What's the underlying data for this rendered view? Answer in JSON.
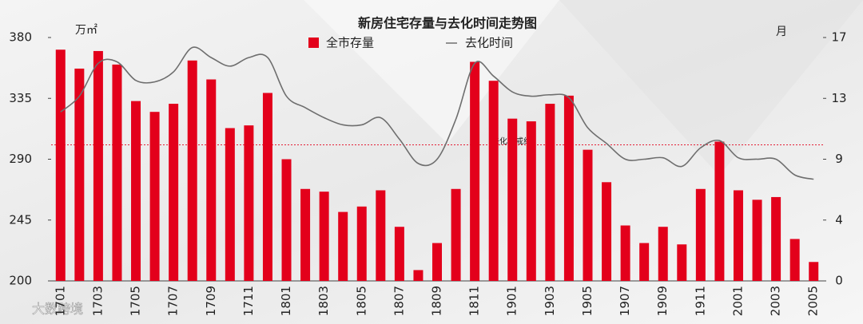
{
  "chart_data": {
    "type": "bar_line",
    "title": "新房住宅存量与去化时间走势图",
    "y_unit": "万㎡",
    "y2_unit": "月",
    "categories": [
      "1701",
      null,
      "1703",
      null,
      "1705",
      null,
      "1707",
      null,
      "1709",
      null,
      "1711",
      null,
      "1801",
      null,
      "1803",
      null,
      "1805",
      null,
      "1807",
      null,
      "1809",
      null,
      "1811",
      null,
      "1901",
      null,
      "1903",
      null,
      "1905",
      null,
      "1907",
      null,
      "1909",
      null,
      "1911",
      null,
      "2001",
      null,
      "2003",
      null,
      "2005"
    ],
    "series": [
      {
        "name": "全市存量",
        "type": "bar",
        "color": "#e3001b",
        "axis": "y",
        "values": [
          371,
          357,
          370,
          360,
          333,
          325,
          331,
          363,
          349,
          313,
          315,
          339,
          290,
          268,
          266,
          251,
          255,
          267,
          240,
          208,
          228,
          268,
          362,
          348,
          320,
          318,
          331,
          337,
          297,
          273,
          241,
          228,
          240,
          227,
          268,
          303,
          267,
          260,
          262,
          231,
          214
        ]
      },
      {
        "name": "去化时间",
        "type": "line",
        "color": "#6e6e6e",
        "axis": "y2",
        "values": [
          11.8,
          12.9,
          15.2,
          15.3,
          14.0,
          13.9,
          14.6,
          16.3,
          15.6,
          15.0,
          15.6,
          15.6,
          12.9,
          12.1,
          11.4,
          10.9,
          10.9,
          11.4,
          9.9,
          8.2,
          8.5,
          11.3,
          15.2,
          14.3,
          13.2,
          12.9,
          13.0,
          12.8,
          10.7,
          9.6,
          8.5,
          8.5,
          8.6,
          8.0,
          9.3,
          9.8,
          8.6,
          8.5,
          8.5,
          7.4,
          7.1
        ]
      }
    ],
    "ylim": [
      200,
      380
    ],
    "yticks": [
      200,
      245,
      290,
      335,
      380
    ],
    "y2lim": [
      0,
      17
    ],
    "y2ticks": [
      0,
      {
        "value": 4.25,
        "label": "4"
      },
      {
        "value": 8.5,
        "label": "9"
      },
      {
        "value": 12.75,
        "label": "13"
      },
      17
    ],
    "reference_line": {
      "label": "去化警戒线",
      "value": 9.5,
      "axis": "y2",
      "color": "#e3001b"
    },
    "watermark": "大数跨境"
  }
}
